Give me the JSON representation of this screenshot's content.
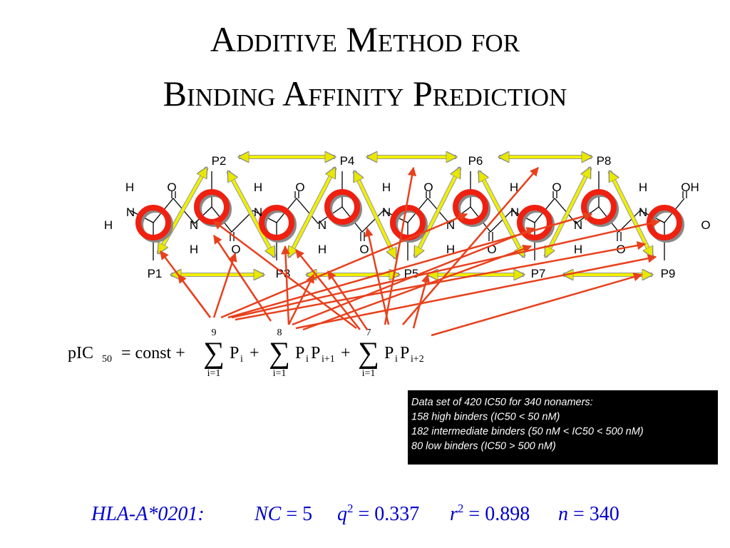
{
  "header": {
    "title_lines": [
      "Additive Method for",
      "Binding Affinity Prediction"
    ]
  },
  "diagram": {
    "positions": [
      "P1",
      "P2",
      "P3",
      "P4",
      "P5",
      "P6",
      "P7",
      "P8",
      "P9"
    ],
    "atoms": [
      "H",
      "H",
      "N",
      "O",
      "N",
      "H",
      "O",
      "H",
      "N",
      "O",
      "N",
      "H",
      "O",
      "H",
      "N",
      "O",
      "N",
      "H",
      "O",
      "H",
      "N",
      "O",
      "N",
      "H",
      "O",
      "H",
      "N",
      "OH",
      "O"
    ]
  },
  "formula": {
    "lhs": "pIC",
    "lhs_sub": "50",
    "const": "= const +",
    "sums": [
      {
        "upper": "9",
        "lower": "i=1",
        "terms": [
          [
            "P",
            "i"
          ]
        ]
      },
      {
        "upper": "8",
        "lower": "i=1",
        "terms": [
          [
            "P",
            "i"
          ],
          [
            "P",
            "i+1"
          ]
        ]
      },
      {
        "upper": "7",
        "lower": "i=1",
        "terms": [
          [
            "P",
            "i"
          ],
          [
            "P",
            "i+2"
          ]
        ]
      }
    ],
    "plus": "+"
  },
  "note": {
    "lines": [
      "Data set of 420 IC50 for 340 nonamers:",
      "158 high binders (IC50 < 50 nM)",
      "182 intermediate binders (50 nM < IC50 < 500 nM)",
      "80 low binders (IC50 > 500 nM)"
    ]
  },
  "stats": {
    "allele": "HLA-A*0201:",
    "items": [
      {
        "symbol": "NC",
        "rest": " = 5"
      },
      {
        "symbol": "q",
        "sup": "2",
        "rest": " = 0.337"
      },
      {
        "symbol": "r",
        "sup": "2",
        "rest": " = 0.898"
      },
      {
        "symbol": "n",
        "rest": " = 340"
      }
    ]
  }
}
